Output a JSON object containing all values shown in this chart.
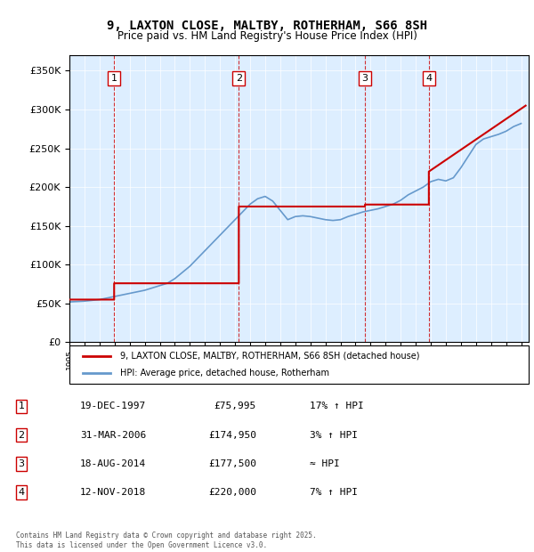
{
  "title": "9, LAXTON CLOSE, MALTBY, ROTHERHAM, S66 8SH",
  "subtitle": "Price paid vs. HM Land Registry's House Price Index (HPI)",
  "transactions": [
    {
      "num": 1,
      "date_str": "19-DEC-1997",
      "date_x": 1997.97,
      "price": 75995,
      "label": "17% ↑ HPI"
    },
    {
      "num": 2,
      "date_str": "31-MAR-2006",
      "date_x": 2006.25,
      "price": 174950,
      "label": "3% ↑ HPI"
    },
    {
      "num": 3,
      "date_str": "18-AUG-2014",
      "date_x": 2014.63,
      "price": 177500,
      "label": "≈ HPI"
    },
    {
      "num": 4,
      "date_str": "12-NOV-2018",
      "date_x": 2018.87,
      "price": 220000,
      "label": "7% ↑ HPI"
    }
  ],
  "legend_property": "9, LAXTON CLOSE, MALTBY, ROTHERHAM, S66 8SH (detached house)",
  "legend_hpi": "HPI: Average price, detached house, Rotherham",
  "footer": "Contains HM Land Registry data © Crown copyright and database right 2025.\nThis data is licensed under the Open Government Licence v3.0.",
  "property_color": "#cc0000",
  "hpi_color": "#6699cc",
  "background_color": "#ddeeff",
  "ylim": [
    0,
    370000
  ],
  "yticks": [
    0,
    50000,
    100000,
    150000,
    200000,
    250000,
    300000,
    350000
  ],
  "xlim_start": 1995.0,
  "xlim_end": 2025.5,
  "hpi_years": [
    1995,
    1995.5,
    1996,
    1996.5,
    1997,
    1997.5,
    1998,
    1998.5,
    1999,
    1999.5,
    2000,
    2000.5,
    2001,
    2001.5,
    2002,
    2002.5,
    2003,
    2003.5,
    2004,
    2004.5,
    2005,
    2005.5,
    2006,
    2006.5,
    2007,
    2007.5,
    2008,
    2008.5,
    2009,
    2009.5,
    2010,
    2010.5,
    2011,
    2011.5,
    2012,
    2012.5,
    2013,
    2013.5,
    2014,
    2014.5,
    2015,
    2015.5,
    2016,
    2016.5,
    2017,
    2017.5,
    2018,
    2018.5,
    2019,
    2019.5,
    2020,
    2020.5,
    2021,
    2021.5,
    2022,
    2022.5,
    2023,
    2023.5,
    2024,
    2024.5,
    2025
  ],
  "hpi_values": [
    52000,
    52500,
    53000,
    54000,
    55000,
    57000,
    59000,
    61000,
    63000,
    65000,
    67000,
    70000,
    73000,
    76000,
    82000,
    90000,
    98000,
    108000,
    118000,
    128000,
    138000,
    148000,
    158000,
    168000,
    178000,
    185000,
    188000,
    182000,
    170000,
    158000,
    162000,
    163000,
    162000,
    160000,
    158000,
    157000,
    158000,
    162000,
    165000,
    168000,
    170000,
    172000,
    175000,
    178000,
    183000,
    190000,
    195000,
    200000,
    207000,
    210000,
    208000,
    212000,
    225000,
    240000,
    255000,
    262000,
    265000,
    268000,
    272000,
    278000,
    282000
  ],
  "property_years": [
    1995,
    1997.97,
    1997.97,
    2006.25,
    2006.25,
    2014.63,
    2014.63,
    2018.87,
    2018.87,
    2025.3
  ],
  "property_values": [
    55000,
    55000,
    75995,
    75995,
    174950,
    174950,
    177500,
    177500,
    220000,
    305000
  ]
}
